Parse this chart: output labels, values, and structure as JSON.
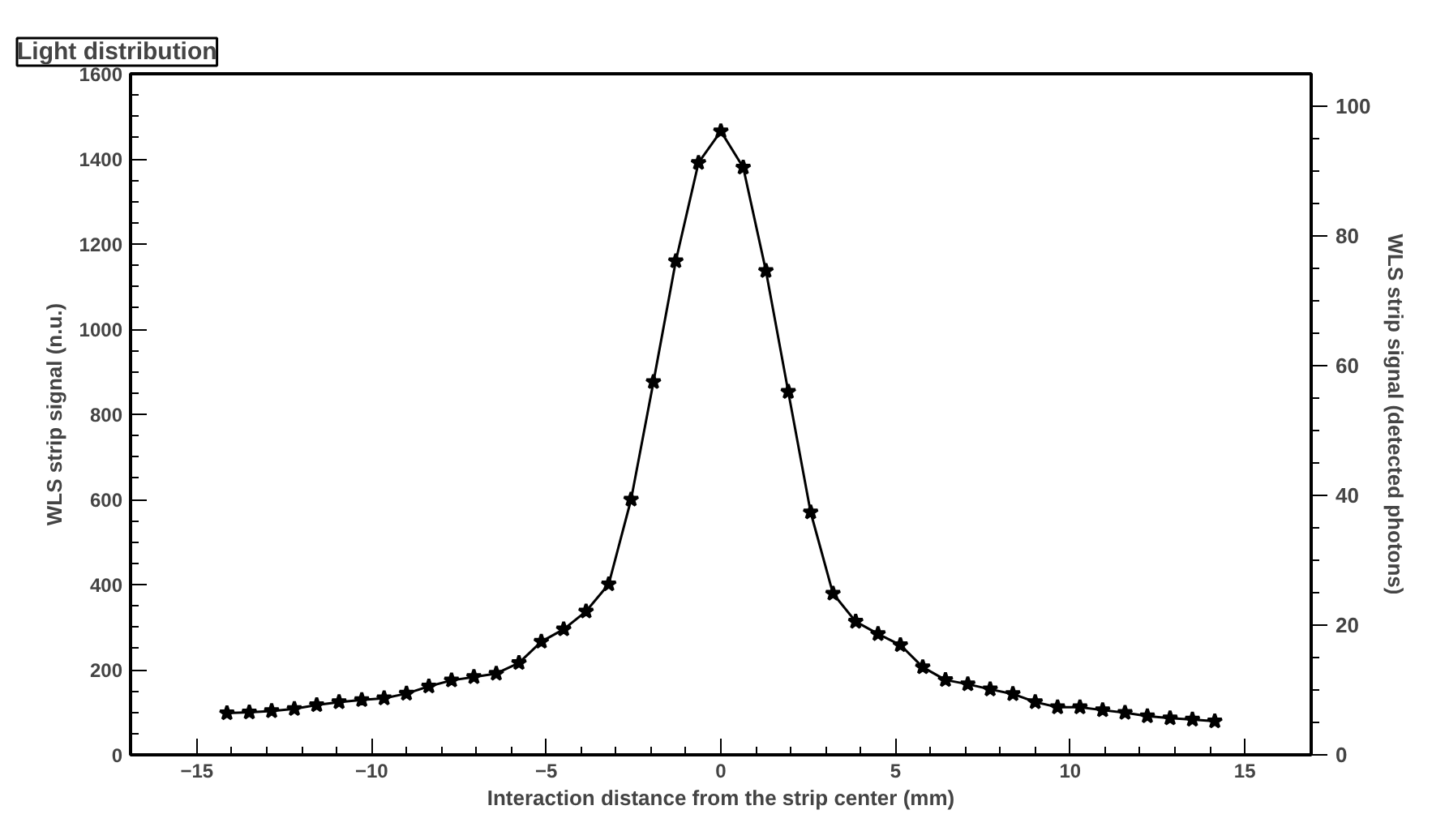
{
  "chart_data": {
    "type": "line",
    "title": "Light distribution",
    "xlabel": "Interaction distance from the strip center (mm)",
    "ylabel": "WLS strip signal (n.u.)",
    "y2label": "WLS strip signal (detected photons)",
    "x": [
      -14.14,
      -13.5,
      -12.86,
      -12.21,
      -11.57,
      -10.93,
      -10.28,
      -9.64,
      -9.0,
      -8.36,
      -7.71,
      -7.07,
      -6.43,
      -5.78,
      -5.14,
      -4.5,
      -3.86,
      -3.21,
      -2.57,
      -1.93,
      -1.29,
      -0.64,
      0,
      0.64,
      1.29,
      1.93,
      2.57,
      3.21,
      3.86,
      4.5,
      5.14,
      5.78,
      6.43,
      7.07,
      7.71,
      8.36,
      9.0,
      9.64,
      10.28,
      10.93,
      11.57,
      12.21,
      12.86,
      13.5,
      14.14
    ],
    "series": [
      {
        "color": "#000000",
        "values": [
          98,
          100,
          103,
          108,
          117,
          124,
          129,
          133,
          144,
          161,
          175,
          183,
          191,
          216,
          266,
          295,
          337,
          401,
          600,
          876,
          1160,
          1391,
          1465,
          1380,
          1137,
          853,
          570,
          379,
          313,
          284,
          258,
          206,
          176,
          166,
          154,
          143,
          124,
          112,
          112,
          105,
          99,
          91,
          86,
          83,
          79
        ]
      }
    ],
    "xlim": [
      -16.9,
      16.9
    ],
    "xticks": [
      -15,
      -10,
      -5,
      0,
      5,
      10,
      15
    ],
    "ylim": [
      0,
      1600
    ],
    "yticks": [
      0,
      200,
      400,
      600,
      800,
      1000,
      1200,
      1400,
      1600
    ],
    "y2lim": [
      0,
      105
    ],
    "y2ticks": [
      0,
      20,
      40,
      60,
      80,
      100
    ],
    "grid": false,
    "marker": "star",
    "line_style": "solid"
  }
}
